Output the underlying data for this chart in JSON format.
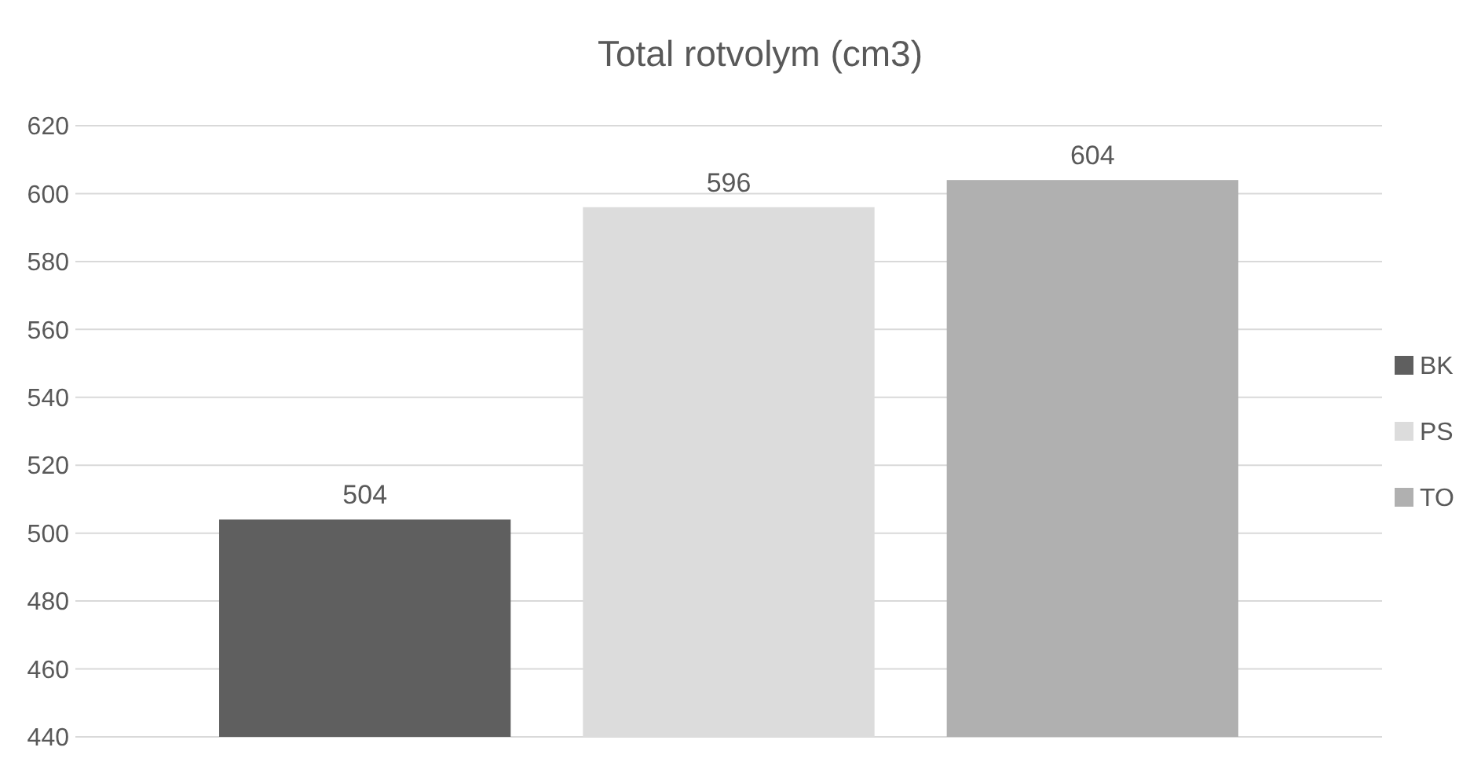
{
  "chart_data": {
    "type": "bar",
    "title": "Total rotvolym (cm3)",
    "categories": [
      null
    ],
    "series": [
      {
        "name": "BK",
        "color": "#5f5f5f",
        "values": [
          504
        ]
      },
      {
        "name": "PS",
        "color": "#dcdcdc",
        "values": [
          596
        ]
      },
      {
        "name": "TO",
        "color": "#b0b0b0",
        "values": [
          604
        ]
      }
    ],
    "ylim": [
      440,
      620
    ],
    "yticks": [
      440,
      460,
      480,
      500,
      520,
      540,
      560,
      580,
      600,
      620
    ],
    "grid": "y",
    "legend": "right",
    "data_labels": true
  }
}
